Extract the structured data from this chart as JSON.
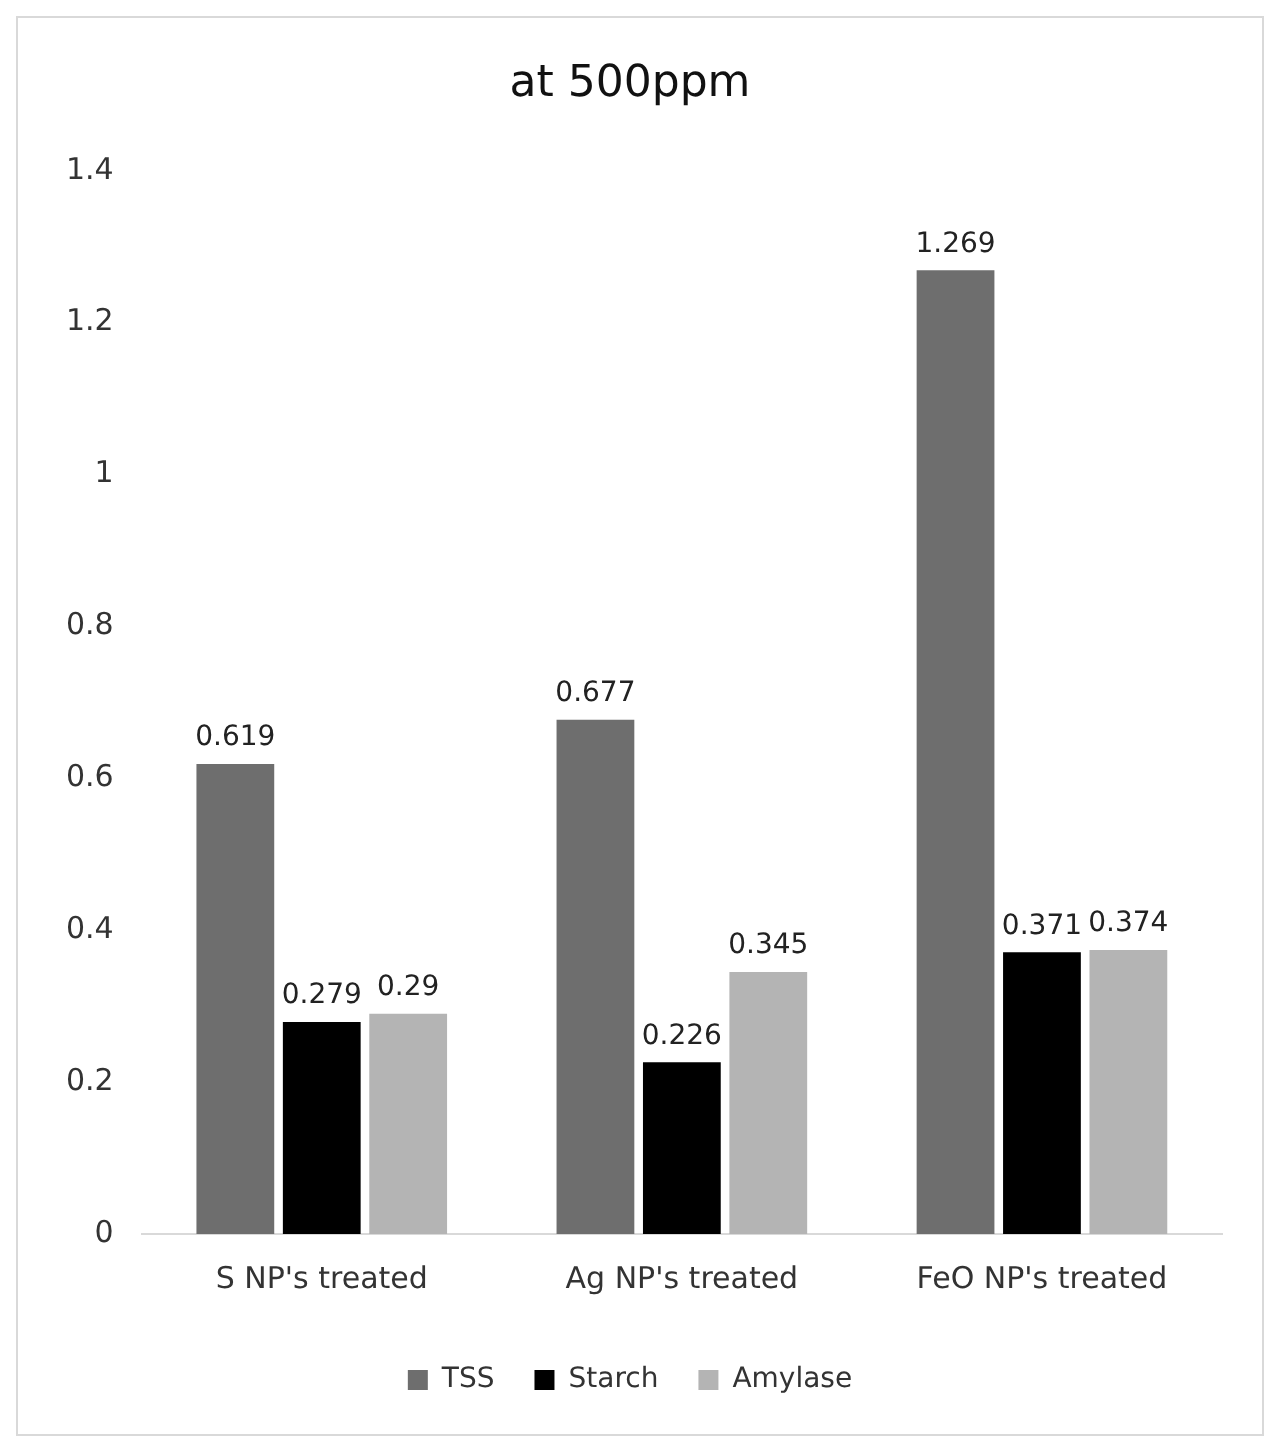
{
  "chart_data": {
    "type": "bar",
    "title": "at 500ppm",
    "categories": [
      "S NP's treated",
      "Ag NP's treated",
      "FeO NP's treated"
    ],
    "series": [
      {
        "name": "TSS",
        "color": "#6e6e6e",
        "values": [
          0.619,
          0.677,
          1.269
        ]
      },
      {
        "name": "Starch",
        "color": "#000000",
        "values": [
          0.279,
          0.226,
          0.371
        ]
      },
      {
        "name": "Amylase",
        "color": "#b4b4b4",
        "values": [
          0.29,
          0.345,
          0.374
        ]
      }
    ],
    "ylim": [
      0,
      1.4
    ],
    "yticks": [
      0,
      0.2,
      0.4,
      0.6,
      0.8,
      1,
      1.2,
      1.4
    ],
    "grid": false,
    "legend": "bottom",
    "data_labels": true
  }
}
